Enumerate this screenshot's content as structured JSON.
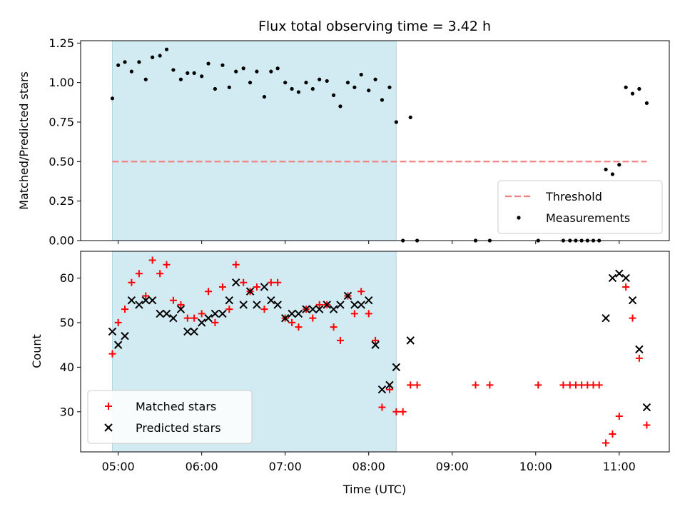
{
  "chart_data": {
    "title": "Flux total observing time = 3.42 h",
    "xlabel": "Time (UTC)",
    "x_ticks": [
      "05:00",
      "06:00",
      "07:00",
      "08:00",
      "09:00",
      "10:00",
      "11:00"
    ],
    "x_tick_hours": [
      5,
      6,
      7,
      8,
      9,
      10,
      11
    ],
    "xlim_hours": [
      4.55,
      11.6
    ],
    "shaded_span_hours": [
      4.93,
      8.33
    ],
    "shade_color": "#add8e6",
    "panels": [
      {
        "type": "scatter",
        "ylabel": "Matched/Predicted stars",
        "ylim": [
          0,
          1.265
        ],
        "y_ticks": [
          "0.00",
          "0.25",
          "0.50",
          "0.75",
          "1.00",
          "1.25"
        ],
        "y_tick_values": [
          0,
          0.25,
          0.5,
          0.75,
          1.0,
          1.25
        ],
        "threshold": {
          "name": "Threshold",
          "value": 0.5,
          "x_range_hours": [
            4.93,
            11.33
          ],
          "color": "#f08080"
        },
        "series": [
          {
            "name": "Measurements",
            "marker": "dot",
            "color": "#000000",
            "points": [
              [
                4.93,
                0.9
              ],
              [
                5.0,
                1.11
              ],
              [
                5.08,
                1.13
              ],
              [
                5.16,
                1.07
              ],
              [
                5.25,
                1.13
              ],
              [
                5.33,
                1.02
              ],
              [
                5.41,
                1.16
              ],
              [
                5.5,
                1.17
              ],
              [
                5.58,
                1.21
              ],
              [
                5.66,
                1.08
              ],
              [
                5.75,
                1.02
              ],
              [
                5.83,
                1.06
              ],
              [
                5.91,
                1.06
              ],
              [
                6.0,
                1.04
              ],
              [
                6.08,
                1.12
              ],
              [
                6.16,
                0.96
              ],
              [
                6.25,
                1.11
              ],
              [
                6.33,
                0.97
              ],
              [
                6.41,
                1.07
              ],
              [
                6.5,
                1.09
              ],
              [
                6.58,
                1.0
              ],
              [
                6.66,
                1.07
              ],
              [
                6.75,
                0.91
              ],
              [
                6.83,
                1.07
              ],
              [
                6.91,
                1.09
              ],
              [
                7.0,
                1.0
              ],
              [
                7.08,
                0.96
              ],
              [
                7.16,
                0.94
              ],
              [
                7.25,
                1.0
              ],
              [
                7.33,
                0.96
              ],
              [
                7.41,
                1.02
              ],
              [
                7.5,
                1.01
              ],
              [
                7.58,
                0.92
              ],
              [
                7.66,
                0.85
              ],
              [
                7.75,
                1.0
              ],
              [
                7.83,
                0.97
              ],
              [
                7.91,
                1.05
              ],
              [
                8.0,
                0.95
              ],
              [
                8.08,
                1.02
              ],
              [
                8.16,
                0.89
              ],
              [
                8.25,
                0.97
              ],
              [
                8.33,
                0.75
              ],
              [
                8.41,
                0.0
              ],
              [
                8.5,
                0.78
              ],
              [
                8.58,
                0.0
              ],
              [
                9.28,
                0.0
              ],
              [
                9.45,
                0.0
              ],
              [
                10.03,
                0.0
              ],
              [
                10.33,
                0.0
              ],
              [
                10.41,
                0.0
              ],
              [
                10.48,
                0.0
              ],
              [
                10.55,
                0.0
              ],
              [
                10.62,
                0.0
              ],
              [
                10.69,
                0.0
              ],
              [
                10.76,
                0.0
              ],
              [
                10.84,
                0.45
              ],
              [
                10.92,
                0.42
              ],
              [
                11.0,
                0.48
              ],
              [
                11.08,
                0.97
              ],
              [
                11.16,
                0.93
              ],
              [
                11.24,
                0.96
              ],
              [
                11.33,
                0.87
              ]
            ]
          }
        ],
        "legend": {
          "placement": "lower-right",
          "entries": [
            "Threshold",
            "Measurements"
          ]
        }
      },
      {
        "type": "scatter",
        "ylabel": "Count",
        "ylim": [
          21,
          66
        ],
        "y_ticks": [
          "30",
          "40",
          "50",
          "60"
        ],
        "y_tick_values": [
          30,
          40,
          50,
          60
        ],
        "series": [
          {
            "name": "Matched stars",
            "marker": "plus",
            "color": "#ff0000",
            "points": [
              [
                4.93,
                43
              ],
              [
                5.0,
                50
              ],
              [
                5.08,
                53
              ],
              [
                5.16,
                59
              ],
              [
                5.25,
                61
              ],
              [
                5.33,
                56
              ],
              [
                5.41,
                64
              ],
              [
                5.5,
                61
              ],
              [
                5.58,
                63
              ],
              [
                5.66,
                55
              ],
              [
                5.75,
                54
              ],
              [
                5.83,
                51
              ],
              [
                5.91,
                51
              ],
              [
                6.0,
                52
              ],
              [
                6.08,
                57
              ],
              [
                6.16,
                50
              ],
              [
                6.25,
                58
              ],
              [
                6.33,
                53
              ],
              [
                6.41,
                63
              ],
              [
                6.5,
                59
              ],
              [
                6.58,
                57
              ],
              [
                6.66,
                58
              ],
              [
                6.75,
                53
              ],
              [
                6.83,
                59
              ],
              [
                6.91,
                59
              ],
              [
                7.0,
                51
              ],
              [
                7.08,
                50
              ],
              [
                7.16,
                49
              ],
              [
                7.25,
                53
              ],
              [
                7.33,
                51
              ],
              [
                7.41,
                54
              ],
              [
                7.5,
                54
              ],
              [
                7.58,
                49
              ],
              [
                7.66,
                46
              ],
              [
                7.75,
                56
              ],
              [
                7.83,
                52
              ],
              [
                7.91,
                57
              ],
              [
                8.0,
                52
              ],
              [
                8.08,
                46
              ],
              [
                8.16,
                31
              ],
              [
                8.25,
                35
              ],
              [
                8.33,
                30
              ],
              [
                8.41,
                30
              ],
              [
                8.5,
                36
              ],
              [
                8.58,
                36
              ],
              [
                9.28,
                36
              ],
              [
                9.45,
                36
              ],
              [
                10.03,
                36
              ],
              [
                10.33,
                36
              ],
              [
                10.41,
                36
              ],
              [
                10.48,
                36
              ],
              [
                10.55,
                36
              ],
              [
                10.62,
                36
              ],
              [
                10.69,
                36
              ],
              [
                10.76,
                36
              ],
              [
                10.84,
                23
              ],
              [
                10.92,
                25
              ],
              [
                11.0,
                29
              ],
              [
                11.08,
                58
              ],
              [
                11.16,
                51
              ],
              [
                11.24,
                42
              ],
              [
                11.33,
                27
              ]
            ]
          },
          {
            "name": "Predicted stars",
            "marker": "x",
            "color": "#000000",
            "points": [
              [
                4.93,
                48
              ],
              [
                5.0,
                45
              ],
              [
                5.08,
                47
              ],
              [
                5.16,
                55
              ],
              [
                5.25,
                54
              ],
              [
                5.33,
                55
              ],
              [
                5.41,
                55
              ],
              [
                5.5,
                52
              ],
              [
                5.58,
                52
              ],
              [
                5.66,
                51
              ],
              [
                5.75,
                53
              ],
              [
                5.83,
                48
              ],
              [
                5.91,
                48
              ],
              [
                6.0,
                50
              ],
              [
                6.08,
                51
              ],
              [
                6.16,
                52
              ],
              [
                6.25,
                52
              ],
              [
                6.33,
                55
              ],
              [
                6.41,
                59
              ],
              [
                6.5,
                54
              ],
              [
                6.58,
                57
              ],
              [
                6.66,
                54
              ],
              [
                6.75,
                58
              ],
              [
                6.83,
                55
              ],
              [
                6.91,
                54
              ],
              [
                7.0,
                51
              ],
              [
                7.08,
                52
              ],
              [
                7.16,
                52
              ],
              [
                7.25,
                53
              ],
              [
                7.33,
                53
              ],
              [
                7.41,
                53
              ],
              [
                7.5,
                54
              ],
              [
                7.58,
                53
              ],
              [
                7.66,
                54
              ],
              [
                7.75,
                56
              ],
              [
                7.83,
                54
              ],
              [
                7.91,
                54
              ],
              [
                8.0,
                55
              ],
              [
                8.08,
                45
              ],
              [
                8.16,
                35
              ],
              [
                8.25,
                36
              ],
              [
                8.33,
                40
              ],
              [
                8.5,
                46
              ],
              [
                10.84,
                51
              ],
              [
                10.92,
                60
              ],
              [
                11.0,
                61
              ],
              [
                11.08,
                60
              ],
              [
                11.16,
                55
              ],
              [
                11.24,
                44
              ],
              [
                11.33,
                31
              ]
            ]
          }
        ],
        "legend": {
          "placement": "lower-left",
          "entries": [
            "Matched stars",
            "Predicted stars"
          ]
        }
      }
    ]
  }
}
